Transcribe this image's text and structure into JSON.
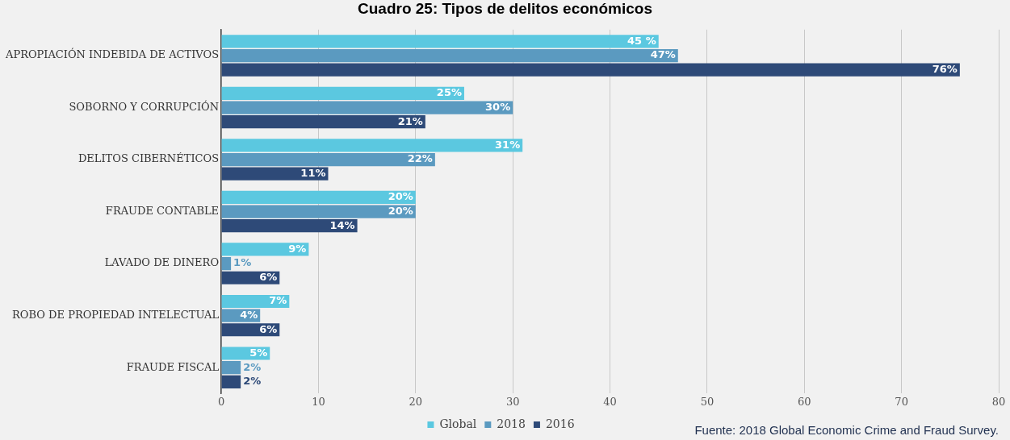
{
  "chart_data": {
    "type": "bar",
    "orientation": "horizontal",
    "title": "Cuadro 25: Tipos de delitos económicos",
    "categories": [
      "APROPIACIÓN INDEBIDA DE ACTIVOS",
      "SOBORNO Y CORRUPCIÓN",
      "DELITOS CIBERNÉTICOS",
      "FRAUDE CONTABLE",
      "LAVADO DE DINERO",
      "ROBO DE PROPIEDAD INTELECTUAL",
      "FRAUDE FISCAL"
    ],
    "series": [
      {
        "name": "Global",
        "color": "#5bc8e0",
        "values": [
          45,
          25,
          31,
          20,
          9,
          7,
          5
        ],
        "value_labels": [
          "45 %",
          "25%",
          "31%",
          "20%",
          "9%",
          "7%",
          "5%"
        ]
      },
      {
        "name": "2018",
        "color": "#5b9ac0",
        "values": [
          47,
          30,
          22,
          20,
          1,
          4,
          2
        ],
        "value_labels": [
          "47%",
          "30%",
          "22%",
          "20%",
          "1%",
          "4%",
          "2%"
        ]
      },
      {
        "name": "2016",
        "color": "#2e4a78",
        "values": [
          76,
          21,
          11,
          14,
          6,
          6,
          2
        ],
        "value_labels": [
          "76%",
          "21%",
          "11%",
          "14%",
          "6%",
          "6%",
          "2%"
        ]
      }
    ],
    "xlim": [
      0,
      80
    ],
    "xticks": [
      0,
      10,
      20,
      30,
      40,
      50,
      60,
      70,
      80
    ],
    "grid": "x",
    "legend": "bottom",
    "annotations": [
      "Fuente: 2018 Global Economic Crime and Fraud Survey."
    ]
  }
}
